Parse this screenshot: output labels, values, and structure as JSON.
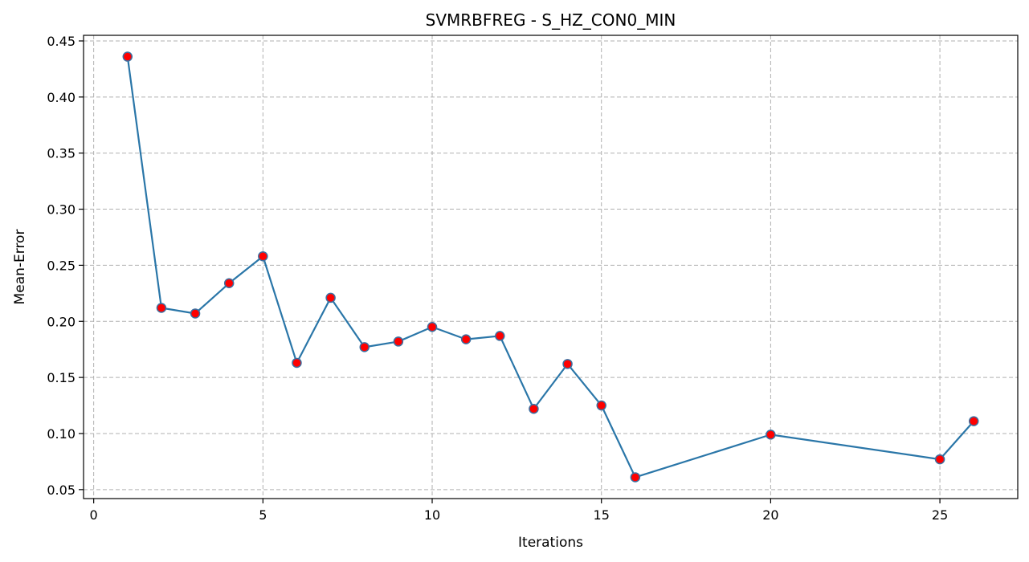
{
  "chart_data": {
    "type": "line",
    "title": "SVMRBFREG - S_HZ_CON0_MIN",
    "xlabel": "Iterations",
    "ylabel": "Mean-Error",
    "xlim": [
      -0.3,
      27.3
    ],
    "ylim": [
      0.042,
      0.455
    ],
    "xticks": [
      0,
      5,
      10,
      15,
      20,
      25
    ],
    "yticks": [
      0.05,
      0.1,
      0.15,
      0.2,
      0.25,
      0.3,
      0.35,
      0.4,
      0.45
    ],
    "grid": true,
    "line_color": "#2a76a8",
    "marker_fill": "#ff0000",
    "marker_edge": "#3c6fa0",
    "series": [
      {
        "x": [
          1,
          2,
          3,
          4,
          5,
          6,
          7,
          8,
          9,
          10,
          11,
          12,
          13,
          14,
          15,
          16,
          20,
          25,
          26
        ],
        "values": [
          0.436,
          0.212,
          0.207,
          0.234,
          0.258,
          0.163,
          0.221,
          0.177,
          0.182,
          0.195,
          0.184,
          0.187,
          0.122,
          0.162,
          0.125,
          0.061,
          0.099,
          0.077,
          0.111
        ]
      }
    ]
  }
}
